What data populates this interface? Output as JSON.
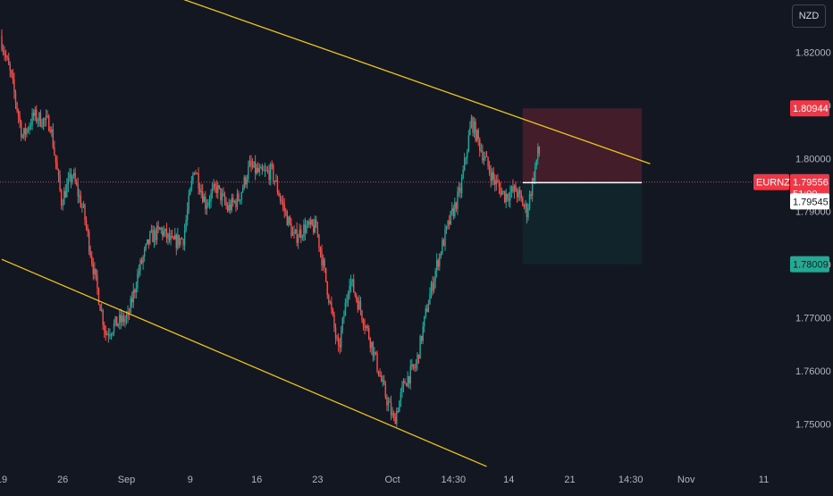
{
  "symbol": "EURNZD",
  "currency": "NZD",
  "countdown": "51:00",
  "colors": {
    "background": "#131722",
    "up": "#26a69a",
    "down": "#ef5350",
    "trendline": "#f0c419",
    "stop_zone": "rgba(242, 54, 69, 0.22)",
    "target_zone": "rgba(8, 153, 129, 0.10)",
    "current_price_line": "#f23645",
    "entry_line": "#ffffff",
    "text": "#b2b5be"
  },
  "y_ticks": [
    "1.82000",
    "1.81000",
    "1.80000",
    "1.79000",
    "1.78000",
    "1.77000",
    "1.76000",
    "1.75000"
  ],
  "x_ticks": [
    "19",
    "26",
    "Sep",
    "9",
    "16",
    "23",
    "Oct",
    "14:30",
    "14",
    "21",
    "14:30",
    "Nov",
    "11"
  ],
  "price_labels": {
    "stop": "1.80944",
    "current": "1.79556",
    "entry": "1.79545",
    "target": "1.78009"
  },
  "chart_data": {
    "type": "candlestick",
    "ylim": [
      1.743,
      1.829
    ],
    "y_tick_values": [
      1.82,
      1.81,
      1.8,
      1.79,
      1.78,
      1.77,
      1.76,
      1.75
    ],
    "current_price": 1.79556,
    "trendlines": [
      {
        "name": "upper channel",
        "points": [
          [
            0.0,
            1.842
          ],
          [
            117.0,
            1.799
          ]
        ]
      },
      {
        "name": "lower channel",
        "points": [
          [
            0.0,
            1.781
          ],
          [
            87.5,
            1.742
          ]
        ]
      }
    ],
    "position": {
      "type": "short",
      "x_range": [
        94.0,
        115.5
      ],
      "entry": 1.79545,
      "stop": 1.80944,
      "target": 1.78009
    },
    "anchors": [
      [
        0,
        1.823
      ],
      [
        2,
        1.815
      ],
      [
        4,
        1.804
      ],
      [
        6,
        1.808
      ],
      [
        9,
        1.8065
      ],
      [
        11,
        1.792
      ],
      [
        13,
        1.797
      ],
      [
        15,
        1.79
      ],
      [
        17,
        1.778
      ],
      [
        19,
        1.767
      ],
      [
        21,
        1.769
      ],
      [
        23,
        1.77
      ],
      [
        25,
        1.779
      ],
      [
        27,
        1.785
      ],
      [
        29,
        1.7865
      ],
      [
        31,
        1.784
      ],
      [
        33,
        1.785
      ],
      [
        35,
        1.7985
      ],
      [
        37,
        1.7915
      ],
      [
        39,
        1.7945
      ],
      [
        41,
        1.7905
      ],
      [
        43,
        1.7925
      ],
      [
        45,
        1.7985
      ],
      [
        47,
        1.797
      ],
      [
        49,
        1.7975
      ],
      [
        51,
        1.791
      ],
      [
        53,
        1.785
      ],
      [
        55,
        1.787
      ],
      [
        57,
        1.787
      ],
      [
        59,
        1.7755
      ],
      [
        61,
        1.7635
      ],
      [
        63,
        1.7775
      ],
      [
        65,
        1.7715
      ],
      [
        67,
        1.765
      ],
      [
        69,
        1.757
      ],
      [
        71,
        1.7505
      ],
      [
        73,
        1.758
      ],
      [
        75,
        1.761
      ],
      [
        77,
        1.772
      ],
      [
        79,
        1.781
      ],
      [
        81,
        1.788
      ],
      [
        83,
        1.794
      ],
      [
        85,
        1.807
      ],
      [
        87,
        1.801
      ],
      [
        89,
        1.796
      ],
      [
        91,
        1.793
      ],
      [
        93,
        1.794
      ],
      [
        95,
        1.79
      ],
      [
        97,
        1.801
      ]
    ]
  }
}
